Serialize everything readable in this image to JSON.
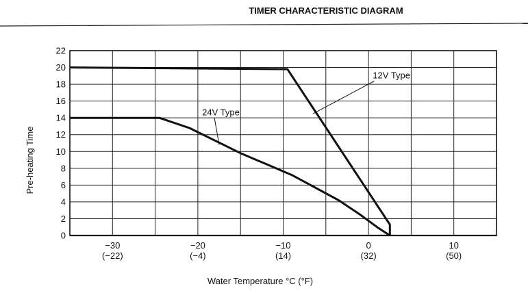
{
  "header": {
    "title": "TIMER CHARACTERISTIC DIAGRAM"
  },
  "chart_data": {
    "type": "line",
    "title": "",
    "xlabel": "Water Temperature °C (°F)",
    "ylabel": "Pre-heating Time",
    "xlim": [
      -35,
      15
    ],
    "ylim": [
      0,
      22
    ],
    "grid": true,
    "y_ticks": [
      0,
      2,
      4,
      6,
      8,
      10,
      12,
      14,
      16,
      18,
      20,
      22
    ],
    "x_ticks": [
      {
        "value": -30,
        "c": "−30",
        "f": "(−22)"
      },
      {
        "value": -20,
        "c": "−20",
        "f": "(−4)"
      },
      {
        "value": -10,
        "c": "−10",
        "f": "(14)"
      },
      {
        "value": 0,
        "c": "0",
        "f": "(32)"
      },
      {
        "value": 10,
        "c": "10",
        "f": "(50)"
      }
    ],
    "series": [
      {
        "name": "12V Type",
        "points": [
          [
            -35,
            20
          ],
          [
            -9.5,
            19.8
          ],
          [
            2.5,
            1.3
          ],
          [
            2.5,
            0
          ]
        ]
      },
      {
        "name": "24V Type",
        "points": [
          [
            -35,
            14
          ],
          [
            -24.5,
            14
          ],
          [
            -21,
            12.8
          ],
          [
            -15,
            9.8
          ],
          [
            -9,
            7.2
          ],
          [
            -3.5,
            4.2
          ],
          [
            -1,
            2.5
          ],
          [
            1,
            1
          ],
          [
            2.5,
            0
          ]
        ]
      }
    ],
    "annotations": [
      {
        "text": "12V Type",
        "x": 0.5,
        "y": 18.7,
        "arrow_to": [
          -6.5,
          14.5
        ]
      },
      {
        "text": "24V Type",
        "x": -19.5,
        "y": 14.3,
        "arrow_to": [
          -17.5,
          10.8
        ]
      }
    ]
  }
}
